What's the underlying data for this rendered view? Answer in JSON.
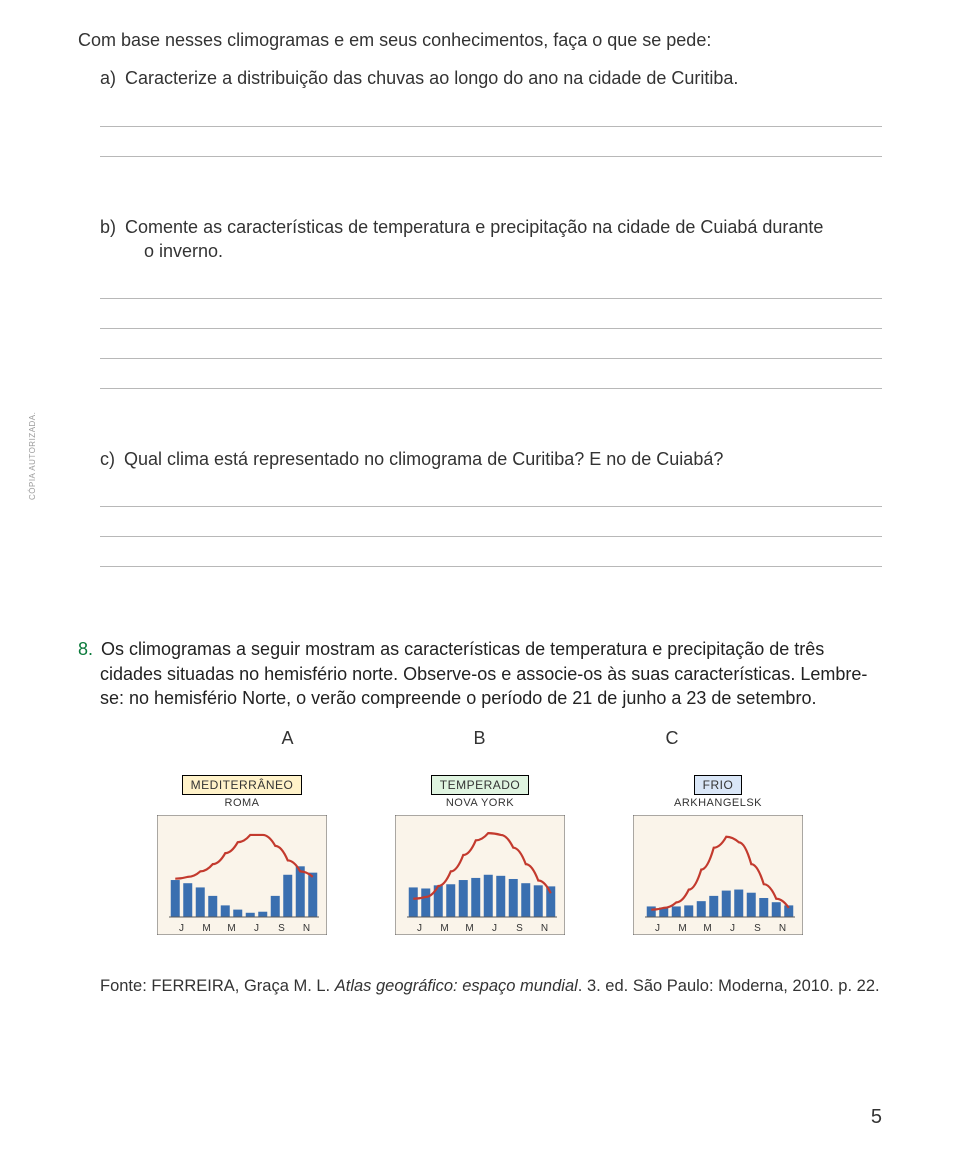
{
  "sidelabel": "CÓPIA AUTORIZADA.",
  "intro": "Com base nesses climogramas e em seus conhecimentos, faça o que se pede:",
  "qa": {
    "letter": "a)",
    "text": "Caracterize a distribuição das chuvas ao longo do ano na cidade de Curitiba."
  },
  "qb": {
    "letter": "b)",
    "text": "Comente as características de temperatura e precipitação na cidade de Cuiabá durante",
    "text2": "o inverno."
  },
  "qc": {
    "letter": "c)",
    "text": "Qual clima está representado no climograma de Curitiba? E no de Cuiabá?"
  },
  "q8": {
    "num": "8.",
    "text": "Os climogramas a seguir mostram as características de temperatura e precipitação de três cidades situadas no hemisfério norte. Observe-os e associe-os às suas características. Lembre-se: no hemisfério Norte, o verão compreende o período de 21 de junho a 23 de setembro."
  },
  "labels": {
    "A": "A",
    "B": "B",
    "C": "C"
  },
  "charts": {
    "months": [
      "J",
      "M",
      "M",
      "J",
      "S",
      "N"
    ],
    "A": {
      "tag": "MEDITERRÂNEO",
      "tag_bg": "#fff2c9",
      "city": "ROMA",
      "bar_color": "#3a6fb0",
      "line_color": "#c33a2e",
      "frame_color": "#5a5a5a",
      "bars": [
        70,
        64,
        56,
        40,
        22,
        14,
        8,
        10,
        40,
        80,
        96,
        84
      ],
      "curve": [
        42,
        44,
        50,
        58,
        70,
        82,
        90,
        90,
        78,
        62,
        50,
        44
      ]
    },
    "B": {
      "tag": "TEMPERADO",
      "tag_bg": "#dff4e0",
      "city": "NOVA YORK",
      "bar_color": "#3a6fb0",
      "line_color": "#c33a2e",
      "frame_color": "#5a5a5a",
      "bars": [
        56,
        54,
        60,
        62,
        70,
        74,
        80,
        78,
        72,
        64,
        60,
        58
      ],
      "curve": [
        20,
        22,
        34,
        50,
        68,
        84,
        92,
        90,
        76,
        58,
        40,
        26
      ]
    },
    "C": {
      "tag": "FRIO",
      "tag_bg": "#d9e6f7",
      "city": "ARKHANGELSK",
      "bar_color": "#3a6fb0",
      "line_color": "#c33a2e",
      "frame_color": "#5a5a5a",
      "bars": [
        20,
        18,
        20,
        22,
        30,
        40,
        50,
        52,
        46,
        36,
        28,
        22
      ],
      "curve": [
        8,
        10,
        16,
        30,
        52,
        76,
        88,
        82,
        58,
        36,
        20,
        10
      ]
    }
  },
  "source": {
    "prefix": "Fonte: FERREIRA, Graça M. L. ",
    "italic": "Atlas geográfico: espaço mundial",
    "suffix": ". 3. ed. São Paulo: Moderna, 2010. p. 22."
  },
  "page_number": "5",
  "answer_lines": {
    "a": 2,
    "b": 4,
    "c": 3
  }
}
